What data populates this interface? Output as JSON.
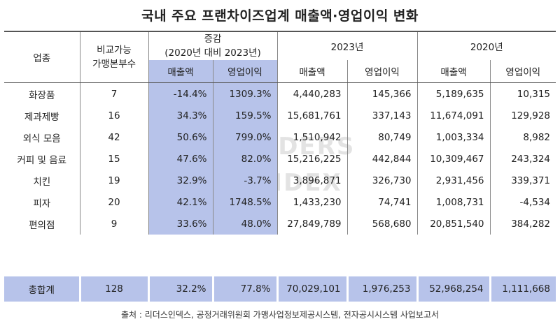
{
  "title": "국내 주요 프랜차이즈업계 매출액·영업이익 변화",
  "headers": {
    "industry": "업종",
    "brand_count_line1": "비교가능",
    "brand_count_line2": "가맹본부수",
    "change_line1": "증감",
    "change_line2": "(2020년 대비 2023년)",
    "year_2023": "2023년",
    "year_2020": "2020년",
    "sales": "매출액",
    "op_profit": "영업이익"
  },
  "rows": [
    {
      "industry": "화장품",
      "count": "7",
      "chg_sales": "-14.4%",
      "chg_op": "1309.3%",
      "s2023": "4,440,283",
      "o2023": "145,366",
      "s2020": "5,189,635",
      "o2020": "10,315"
    },
    {
      "industry": "제과제빵",
      "count": "16",
      "chg_sales": "34.3%",
      "chg_op": "159.5%",
      "s2023": "15,681,761",
      "o2023": "337,143",
      "s2020": "11,674,091",
      "o2020": "129,928"
    },
    {
      "industry": "외식 모음",
      "count": "42",
      "chg_sales": "50.6%",
      "chg_op": "799.0%",
      "s2023": "1,510,942",
      "o2023": "80,749",
      "s2020": "1,003,334",
      "o2020": "8,982"
    },
    {
      "industry": "커피 및 음료",
      "count": "15",
      "chg_sales": "47.6%",
      "chg_op": "82.0%",
      "s2023": "15,216,225",
      "o2023": "442,844",
      "s2020": "10,309,467",
      "o2020": "243,324"
    },
    {
      "industry": "치킨",
      "count": "19",
      "chg_sales": "32.9%",
      "chg_op": "-3.7%",
      "s2023": "3,896,871",
      "o2023": "326,730",
      "s2020": "2,931,456",
      "o2020": "339,371"
    },
    {
      "industry": "피자",
      "count": "20",
      "chg_sales": "42.1%",
      "chg_op": "1748.5%",
      "s2023": "1,433,230",
      "o2023": "74,741",
      "s2020": "1,008,731",
      "o2020": "-4,534"
    },
    {
      "industry": "편의점",
      "count": "9",
      "chg_sales": "33.6%",
      "chg_op": "48.0%",
      "s2023": "27,849,789",
      "o2023": "568,680",
      "s2020": "20,851,540",
      "o2020": "384,282"
    }
  ],
  "total": {
    "industry": "총합계",
    "count": "128",
    "chg_sales": "32.2%",
    "chg_op": "77.8%",
    "s2023": "70,029,101",
    "o2023": "1,976,253",
    "s2020": "52,968,254",
    "o2020": "1,111,668"
  },
  "source": "출처 : 리더스인덱스, 공정거래위원회 가맹사업정보제공시스템, 전자공시시스템 사업보고서",
  "watermark": {
    "line1": "LEADERS",
    "line2": "INDEX",
    "sub": "기업분석전문미디어"
  },
  "colors": {
    "highlight": "#b7c3ea"
  }
}
